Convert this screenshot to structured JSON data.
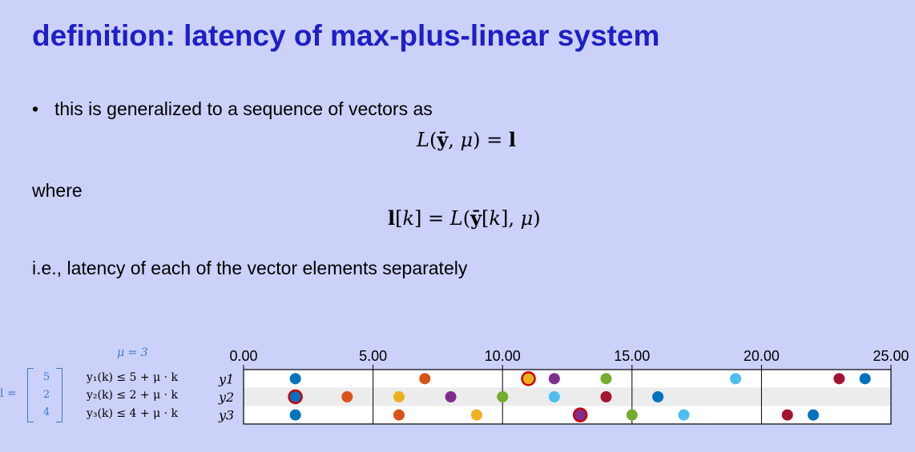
{
  "title": "definition: latency of max-plus-linear system",
  "bullet": "this is generalized to a sequence of vectors as",
  "where": "where",
  "ie": "i.e., latency of each of the vector elements separately",
  "mu_label": "μ = 3",
  "l_vector": {
    "lhs": "l =",
    "values": [
      "5",
      "2",
      "4"
    ]
  },
  "inequalities": [
    "y₁(k) ≤ 5 + μ · k",
    "y₂(k) ≤ 2 + μ · k",
    "y₃(k) ≤ 4 + μ · k"
  ],
  "chart_data": {
    "type": "scatter",
    "xlim": [
      0,
      25
    ],
    "x_tick_labels": [
      "0.00",
      "5.00",
      "10.00",
      "15.00",
      "20.00",
      "25.00"
    ],
    "x_ticks": [
      0,
      5,
      10,
      15,
      20,
      25
    ],
    "rows": [
      "y1",
      "y2",
      "y3"
    ],
    "grid": true,
    "points": [
      {
        "row": "y1",
        "x": 2,
        "color": "#0072bd"
      },
      {
        "row": "y1",
        "x": 7,
        "color": "#d95319"
      },
      {
        "row": "y1",
        "x": 11,
        "color": "#edb120",
        "outline": "#cc0000"
      },
      {
        "row": "y1",
        "x": 12,
        "color": "#7e2f8e"
      },
      {
        "row": "y1",
        "x": 14,
        "color": "#77ac30"
      },
      {
        "row": "y1",
        "x": 19,
        "color": "#4dbeee"
      },
      {
        "row": "y1",
        "x": 23,
        "color": "#a2142f"
      },
      {
        "row": "y1",
        "x": 24,
        "color": "#0072bd"
      },
      {
        "row": "y2",
        "x": 2,
        "color": "#0072bd",
        "outline": "#cc0000"
      },
      {
        "row": "y2",
        "x": 4,
        "color": "#d95319"
      },
      {
        "row": "y2",
        "x": 6,
        "color": "#edb120"
      },
      {
        "row": "y2",
        "x": 8,
        "color": "#7e2f8e"
      },
      {
        "row": "y2",
        "x": 10,
        "color": "#77ac30"
      },
      {
        "row": "y2",
        "x": 12,
        "color": "#4dbeee"
      },
      {
        "row": "y2",
        "x": 14,
        "color": "#a2142f"
      },
      {
        "row": "y2",
        "x": 16,
        "color": "#0072bd"
      },
      {
        "row": "y3",
        "x": 2,
        "color": "#0072bd"
      },
      {
        "row": "y3",
        "x": 6,
        "color": "#d95319"
      },
      {
        "row": "y3",
        "x": 9,
        "color": "#edb120"
      },
      {
        "row": "y3",
        "x": 13,
        "color": "#7e2f8e",
        "outline": "#cc0000"
      },
      {
        "row": "y3",
        "x": 15,
        "color": "#77ac30"
      },
      {
        "row": "y3",
        "x": 17,
        "color": "#4dbeee"
      },
      {
        "row": "y3",
        "x": 21,
        "color": "#a2142f"
      },
      {
        "row": "y3",
        "x": 22,
        "color": "#0072bd"
      }
    ]
  }
}
